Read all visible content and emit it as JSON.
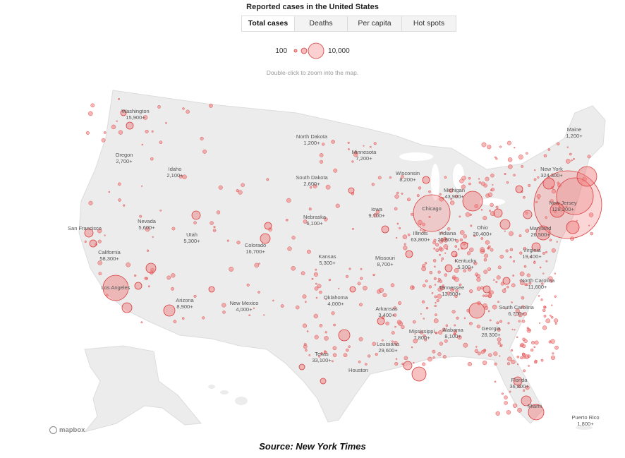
{
  "title": "Reported cases in the United States",
  "tabs": [
    {
      "label": "Total cases",
      "active": true
    },
    {
      "label": "Deaths",
      "active": false
    },
    {
      "label": "Per capita",
      "active": false
    },
    {
      "label": "Hot spots",
      "active": false
    }
  ],
  "legend": {
    "min_label": "100",
    "max_label": "10,000"
  },
  "hint": "Double-click to zoom into the map.",
  "credit": "mapbox",
  "source": "Source: New York Times",
  "colors": {
    "bubble_fill": "#f07878",
    "bubble_stroke": "#d93a3a",
    "land": "#ececec",
    "water": "#ffffff"
  },
  "states": [
    {
      "name": "Washington",
      "value": "15,900+"
    },
    {
      "name": "Oregon",
      "value": "2,700+"
    },
    {
      "name": "Idaho",
      "value": "2,100+"
    },
    {
      "name": "California",
      "value": "58,300+"
    },
    {
      "name": "Nevada",
      "value": "5,600+"
    },
    {
      "name": "Utah",
      "value": "5,300+"
    },
    {
      "name": "Arizona",
      "value": "8,900+"
    },
    {
      "name": "Colorado",
      "value": "16,700+"
    },
    {
      "name": "New Mexico",
      "value": "4,000+"
    },
    {
      "name": "North Dakota",
      "value": "1,200+"
    },
    {
      "name": "South Dakota",
      "value": "2,600+"
    },
    {
      "name": "Nebraska",
      "value": "6,100+"
    },
    {
      "name": "Kansas",
      "value": "5,300+"
    },
    {
      "name": "Oklahoma",
      "value": "4,000+"
    },
    {
      "name": "Texas",
      "value": "33,100+"
    },
    {
      "name": "Minnesota",
      "value": "7,200+"
    },
    {
      "name": "Iowa",
      "value": "9,700+"
    },
    {
      "name": "Missouri",
      "value": "8,700+"
    },
    {
      "name": "Arkansas",
      "value": "3,400+"
    },
    {
      "name": "Louisiana",
      "value": "29,600+"
    },
    {
      "name": "Wisconsin",
      "value": "8,200+"
    },
    {
      "name": "Illinois",
      "value": "63,800+"
    },
    {
      "name": "Michigan",
      "value": "43,900+"
    },
    {
      "name": "Indiana",
      "value": "20,800+"
    },
    {
      "name": "Ohio",
      "value": "20,400+"
    },
    {
      "name": "Kentucky",
      "value": "5,300+"
    },
    {
      "name": "Tennessee",
      "value": "13,300+"
    },
    {
      "name": "Mississippi",
      "value": "7,800+"
    },
    {
      "name": "Alabama",
      "value": "8,100+"
    },
    {
      "name": "Georgia",
      "value": "28,300+"
    },
    {
      "name": "Florida",
      "value": "36,800+"
    },
    {
      "name": "South Carolina",
      "value": "6,700+"
    },
    {
      "name": "North Carolina",
      "value": "11,600+"
    },
    {
      "name": "Virginia",
      "value": "19,400+"
    },
    {
      "name": "Maryland",
      "value": "26,500+"
    },
    {
      "name": "New Jersey",
      "value": "128,200+"
    },
    {
      "name": "New York",
      "value": "324,300+"
    },
    {
      "name": "Maine",
      "value": "1,200+"
    },
    {
      "name": "Puerto Rico",
      "value": "1,800+"
    }
  ],
  "cities": [
    {
      "name": "San Francisco"
    },
    {
      "name": "Los Angeles"
    },
    {
      "name": "Chicago"
    },
    {
      "name": "Miami"
    },
    {
      "name": "Houston"
    }
  ]
}
